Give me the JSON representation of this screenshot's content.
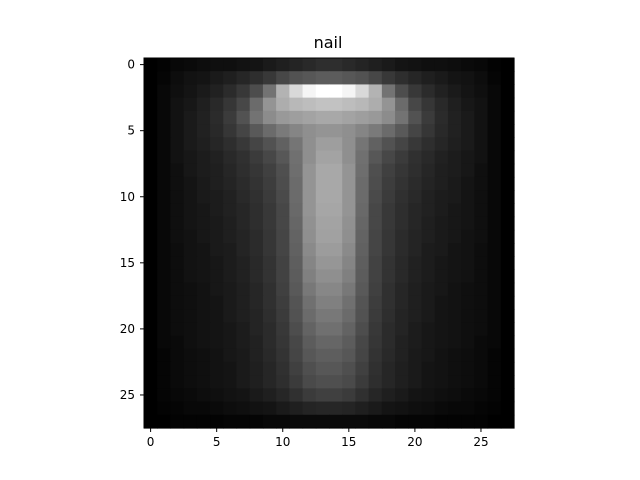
{
  "chart_data": {
    "type": "heatmap",
    "title": "nail",
    "colormap": "gray",
    "xlim": [
      -0.5,
      27.5
    ],
    "ylim": [
      27.5,
      -0.5
    ],
    "x_ticks": [
      0,
      5,
      10,
      15,
      20,
      25
    ],
    "y_ticks": [
      0,
      5,
      10,
      15,
      20,
      25
    ],
    "x_tick_labels": [
      "0",
      "5",
      "10",
      "15",
      "20",
      "25"
    ],
    "y_tick_labels": [
      "0",
      "5",
      "10",
      "15",
      "20",
      "25"
    ],
    "grid": false,
    "columns": 28,
    "rows": 28,
    "value_range": [
      0,
      1
    ],
    "values": [
      [
        0.0,
        0.01,
        0.03,
        0.04,
        0.05,
        0.06,
        0.06,
        0.07,
        0.08,
        0.1,
        0.12,
        0.14,
        0.16,
        0.18,
        0.18,
        0.16,
        0.14,
        0.12,
        0.1,
        0.08,
        0.07,
        0.06,
        0.06,
        0.05,
        0.04,
        0.03,
        0.01,
        0.0
      ],
      [
        0.0,
        0.02,
        0.05,
        0.07,
        0.08,
        0.1,
        0.12,
        0.15,
        0.18,
        0.22,
        0.28,
        0.32,
        0.34,
        0.36,
        0.36,
        0.34,
        0.32,
        0.28,
        0.22,
        0.18,
        0.15,
        0.12,
        0.1,
        0.08,
        0.07,
        0.05,
        0.02,
        0.0
      ],
      [
        0.0,
        0.03,
        0.06,
        0.08,
        0.1,
        0.13,
        0.17,
        0.22,
        0.3,
        0.45,
        0.7,
        0.85,
        0.96,
        1.0,
        1.0,
        0.96,
        0.85,
        0.7,
        0.45,
        0.3,
        0.22,
        0.17,
        0.13,
        0.1,
        0.08,
        0.06,
        0.03,
        0.0
      ],
      [
        0.0,
        0.03,
        0.07,
        0.09,
        0.12,
        0.16,
        0.21,
        0.28,
        0.42,
        0.58,
        0.68,
        0.72,
        0.74,
        0.76,
        0.76,
        0.74,
        0.72,
        0.68,
        0.58,
        0.42,
        0.28,
        0.21,
        0.16,
        0.12,
        0.09,
        0.07,
        0.03,
        0.0
      ],
      [
        0.0,
        0.03,
        0.07,
        0.1,
        0.13,
        0.17,
        0.23,
        0.32,
        0.45,
        0.55,
        0.6,
        0.62,
        0.64,
        0.66,
        0.66,
        0.64,
        0.62,
        0.6,
        0.55,
        0.45,
        0.32,
        0.23,
        0.17,
        0.13,
        0.1,
        0.07,
        0.03,
        0.0
      ],
      [
        0.0,
        0.03,
        0.07,
        0.1,
        0.13,
        0.16,
        0.21,
        0.27,
        0.35,
        0.42,
        0.48,
        0.52,
        0.56,
        0.58,
        0.58,
        0.56,
        0.52,
        0.48,
        0.42,
        0.35,
        0.27,
        0.21,
        0.16,
        0.13,
        0.1,
        0.07,
        0.03,
        0.0
      ],
      [
        0.0,
        0.03,
        0.07,
        0.1,
        0.12,
        0.15,
        0.18,
        0.22,
        0.27,
        0.32,
        0.38,
        0.46,
        0.56,
        0.62,
        0.62,
        0.56,
        0.46,
        0.38,
        0.32,
        0.27,
        0.22,
        0.18,
        0.15,
        0.12,
        0.1,
        0.07,
        0.03,
        0.0
      ],
      [
        0.0,
        0.03,
        0.07,
        0.09,
        0.11,
        0.13,
        0.16,
        0.19,
        0.23,
        0.28,
        0.34,
        0.44,
        0.56,
        0.64,
        0.64,
        0.56,
        0.44,
        0.34,
        0.28,
        0.23,
        0.19,
        0.16,
        0.13,
        0.11,
        0.09,
        0.07,
        0.03,
        0.0
      ],
      [
        0.0,
        0.03,
        0.06,
        0.09,
        0.11,
        0.12,
        0.15,
        0.18,
        0.21,
        0.25,
        0.31,
        0.43,
        0.58,
        0.66,
        0.66,
        0.58,
        0.43,
        0.31,
        0.25,
        0.21,
        0.18,
        0.15,
        0.12,
        0.11,
        0.09,
        0.06,
        0.03,
        0.0
      ],
      [
        0.0,
        0.03,
        0.06,
        0.08,
        0.1,
        0.12,
        0.14,
        0.17,
        0.2,
        0.24,
        0.3,
        0.42,
        0.58,
        0.66,
        0.66,
        0.58,
        0.42,
        0.3,
        0.24,
        0.2,
        0.17,
        0.14,
        0.12,
        0.1,
        0.08,
        0.06,
        0.03,
        0.0
      ],
      [
        0.0,
        0.03,
        0.06,
        0.08,
        0.1,
        0.11,
        0.13,
        0.16,
        0.19,
        0.23,
        0.29,
        0.42,
        0.58,
        0.66,
        0.66,
        0.58,
        0.42,
        0.29,
        0.23,
        0.19,
        0.16,
        0.13,
        0.11,
        0.1,
        0.08,
        0.06,
        0.03,
        0.0
      ],
      [
        0.0,
        0.03,
        0.06,
        0.08,
        0.09,
        0.11,
        0.13,
        0.15,
        0.18,
        0.22,
        0.28,
        0.41,
        0.58,
        0.65,
        0.65,
        0.58,
        0.41,
        0.28,
        0.22,
        0.18,
        0.15,
        0.13,
        0.11,
        0.09,
        0.08,
        0.06,
        0.03,
        0.0
      ],
      [
        0.0,
        0.03,
        0.06,
        0.08,
        0.09,
        0.1,
        0.12,
        0.15,
        0.18,
        0.22,
        0.28,
        0.4,
        0.57,
        0.64,
        0.64,
        0.57,
        0.4,
        0.28,
        0.22,
        0.18,
        0.15,
        0.12,
        0.1,
        0.09,
        0.08,
        0.06,
        0.03,
        0.0
      ],
      [
        0.0,
        0.03,
        0.06,
        0.07,
        0.09,
        0.1,
        0.12,
        0.14,
        0.17,
        0.21,
        0.27,
        0.39,
        0.56,
        0.63,
        0.63,
        0.56,
        0.39,
        0.27,
        0.21,
        0.17,
        0.14,
        0.12,
        0.1,
        0.09,
        0.07,
        0.06,
        0.03,
        0.0
      ],
      [
        0.0,
        0.03,
        0.05,
        0.07,
        0.08,
        0.1,
        0.11,
        0.14,
        0.17,
        0.21,
        0.27,
        0.38,
        0.54,
        0.61,
        0.61,
        0.54,
        0.38,
        0.27,
        0.21,
        0.17,
        0.14,
        0.11,
        0.1,
        0.08,
        0.07,
        0.05,
        0.03,
        0.0
      ],
      [
        0.0,
        0.03,
        0.05,
        0.07,
        0.08,
        0.09,
        0.11,
        0.13,
        0.16,
        0.2,
        0.26,
        0.37,
        0.52,
        0.59,
        0.59,
        0.52,
        0.37,
        0.26,
        0.2,
        0.16,
        0.13,
        0.11,
        0.09,
        0.08,
        0.07,
        0.05,
        0.03,
        0.0
      ],
      [
        0.0,
        0.03,
        0.05,
        0.07,
        0.08,
        0.09,
        0.11,
        0.13,
        0.16,
        0.2,
        0.26,
        0.36,
        0.5,
        0.56,
        0.56,
        0.5,
        0.36,
        0.26,
        0.2,
        0.16,
        0.13,
        0.11,
        0.09,
        0.08,
        0.07,
        0.05,
        0.03,
        0.0
      ],
      [
        0.0,
        0.03,
        0.05,
        0.06,
        0.07,
        0.09,
        0.1,
        0.12,
        0.15,
        0.19,
        0.25,
        0.35,
        0.47,
        0.53,
        0.53,
        0.47,
        0.35,
        0.25,
        0.19,
        0.15,
        0.12,
        0.1,
        0.09,
        0.07,
        0.06,
        0.05,
        0.03,
        0.0
      ],
      [
        0.0,
        0.03,
        0.05,
        0.06,
        0.07,
        0.08,
        0.1,
        0.12,
        0.15,
        0.19,
        0.24,
        0.33,
        0.44,
        0.5,
        0.5,
        0.44,
        0.33,
        0.24,
        0.19,
        0.15,
        0.12,
        0.1,
        0.08,
        0.07,
        0.06,
        0.05,
        0.03,
        0.0
      ],
      [
        0.0,
        0.03,
        0.05,
        0.06,
        0.07,
        0.08,
        0.1,
        0.12,
        0.14,
        0.18,
        0.23,
        0.32,
        0.42,
        0.47,
        0.47,
        0.42,
        0.32,
        0.23,
        0.18,
        0.14,
        0.12,
        0.1,
        0.08,
        0.07,
        0.06,
        0.05,
        0.03,
        0.0
      ],
      [
        0.0,
        0.03,
        0.05,
        0.06,
        0.07,
        0.08,
        0.09,
        0.11,
        0.14,
        0.17,
        0.22,
        0.3,
        0.39,
        0.44,
        0.44,
        0.39,
        0.3,
        0.22,
        0.17,
        0.14,
        0.11,
        0.09,
        0.08,
        0.07,
        0.06,
        0.05,
        0.03,
        0.0
      ],
      [
        0.0,
        0.03,
        0.04,
        0.06,
        0.07,
        0.08,
        0.09,
        0.11,
        0.13,
        0.17,
        0.21,
        0.28,
        0.36,
        0.4,
        0.4,
        0.36,
        0.28,
        0.21,
        0.17,
        0.13,
        0.11,
        0.09,
        0.08,
        0.07,
        0.06,
        0.04,
        0.03,
        0.0
      ],
      [
        0.0,
        0.02,
        0.04,
        0.05,
        0.06,
        0.07,
        0.09,
        0.1,
        0.13,
        0.16,
        0.2,
        0.27,
        0.34,
        0.37,
        0.37,
        0.34,
        0.27,
        0.2,
        0.16,
        0.13,
        0.1,
        0.09,
        0.07,
        0.06,
        0.05,
        0.04,
        0.02,
        0.0
      ],
      [
        0.0,
        0.02,
        0.04,
        0.05,
        0.06,
        0.07,
        0.08,
        0.1,
        0.12,
        0.15,
        0.19,
        0.25,
        0.31,
        0.34,
        0.34,
        0.31,
        0.25,
        0.19,
        0.15,
        0.12,
        0.1,
        0.08,
        0.07,
        0.06,
        0.05,
        0.04,
        0.02,
        0.0
      ],
      [
        0.0,
        0.02,
        0.04,
        0.05,
        0.06,
        0.07,
        0.08,
        0.1,
        0.12,
        0.15,
        0.18,
        0.23,
        0.29,
        0.31,
        0.31,
        0.29,
        0.23,
        0.18,
        0.15,
        0.12,
        0.1,
        0.08,
        0.07,
        0.06,
        0.05,
        0.04,
        0.02,
        0.0
      ],
      [
        0.0,
        0.02,
        0.03,
        0.04,
        0.05,
        0.06,
        0.07,
        0.08,
        0.1,
        0.12,
        0.15,
        0.19,
        0.23,
        0.25,
        0.25,
        0.23,
        0.19,
        0.15,
        0.12,
        0.1,
        0.08,
        0.07,
        0.06,
        0.05,
        0.04,
        0.03,
        0.02,
        0.0
      ],
      [
        0.0,
        0.01,
        0.02,
        0.03,
        0.03,
        0.04,
        0.05,
        0.06,
        0.07,
        0.08,
        0.1,
        0.12,
        0.14,
        0.15,
        0.15,
        0.14,
        0.12,
        0.1,
        0.08,
        0.07,
        0.06,
        0.05,
        0.04,
        0.03,
        0.03,
        0.02,
        0.01,
        0.0
      ],
      [
        0.0,
        0.0,
        0.01,
        0.01,
        0.01,
        0.01,
        0.02,
        0.02,
        0.02,
        0.03,
        0.03,
        0.04,
        0.04,
        0.04,
        0.04,
        0.04,
        0.04,
        0.03,
        0.03,
        0.02,
        0.02,
        0.02,
        0.01,
        0.01,
        0.01,
        0.01,
        0.0,
        0.0
      ]
    ]
  }
}
